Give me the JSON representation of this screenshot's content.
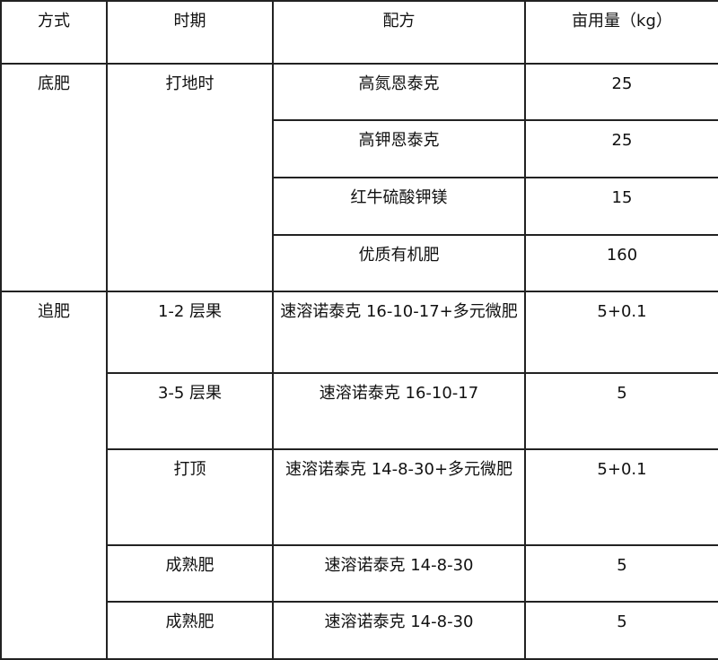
{
  "headers": [
    "方式",
    "时期",
    "配方",
    "亩用量（kg）"
  ],
  "groups": [
    {
      "method": "底肥",
      "periods": [
        "打地时"
      ],
      "rows": [
        {
          "formula": "高氮恩泰克",
          "amount": "25"
        },
        {
          "formula": "高钾恩泰克",
          "amount": "25"
        },
        {
          "formula": "红牛硫酸钾镁",
          "amount": "15"
        },
        {
          "formula": "优质有机肥",
          "amount": "160"
        }
      ]
    },
    {
      "method": "追肥",
      "rows": [
        {
          "period": "1-2 层果",
          "formula": "速溶诺泰克 16-10-17+多元微肥",
          "amount": "5+0.1"
        },
        {
          "period": "3-5 层果",
          "formula": "速溶诺泰克 16-10-17",
          "amount": "5"
        },
        {
          "period": "打顶",
          "formula": "速溶诺泰克 14-8-30+多元微肥",
          "amount": "5+0.1"
        },
        {
          "period": "成熟肥",
          "formula": "速溶诺泰克 14-8-30",
          "amount": "5"
        },
        {
          "period": "成熟肥",
          "formula": "速溶诺泰克 14-8-30",
          "amount": "5"
        }
      ]
    }
  ]
}
